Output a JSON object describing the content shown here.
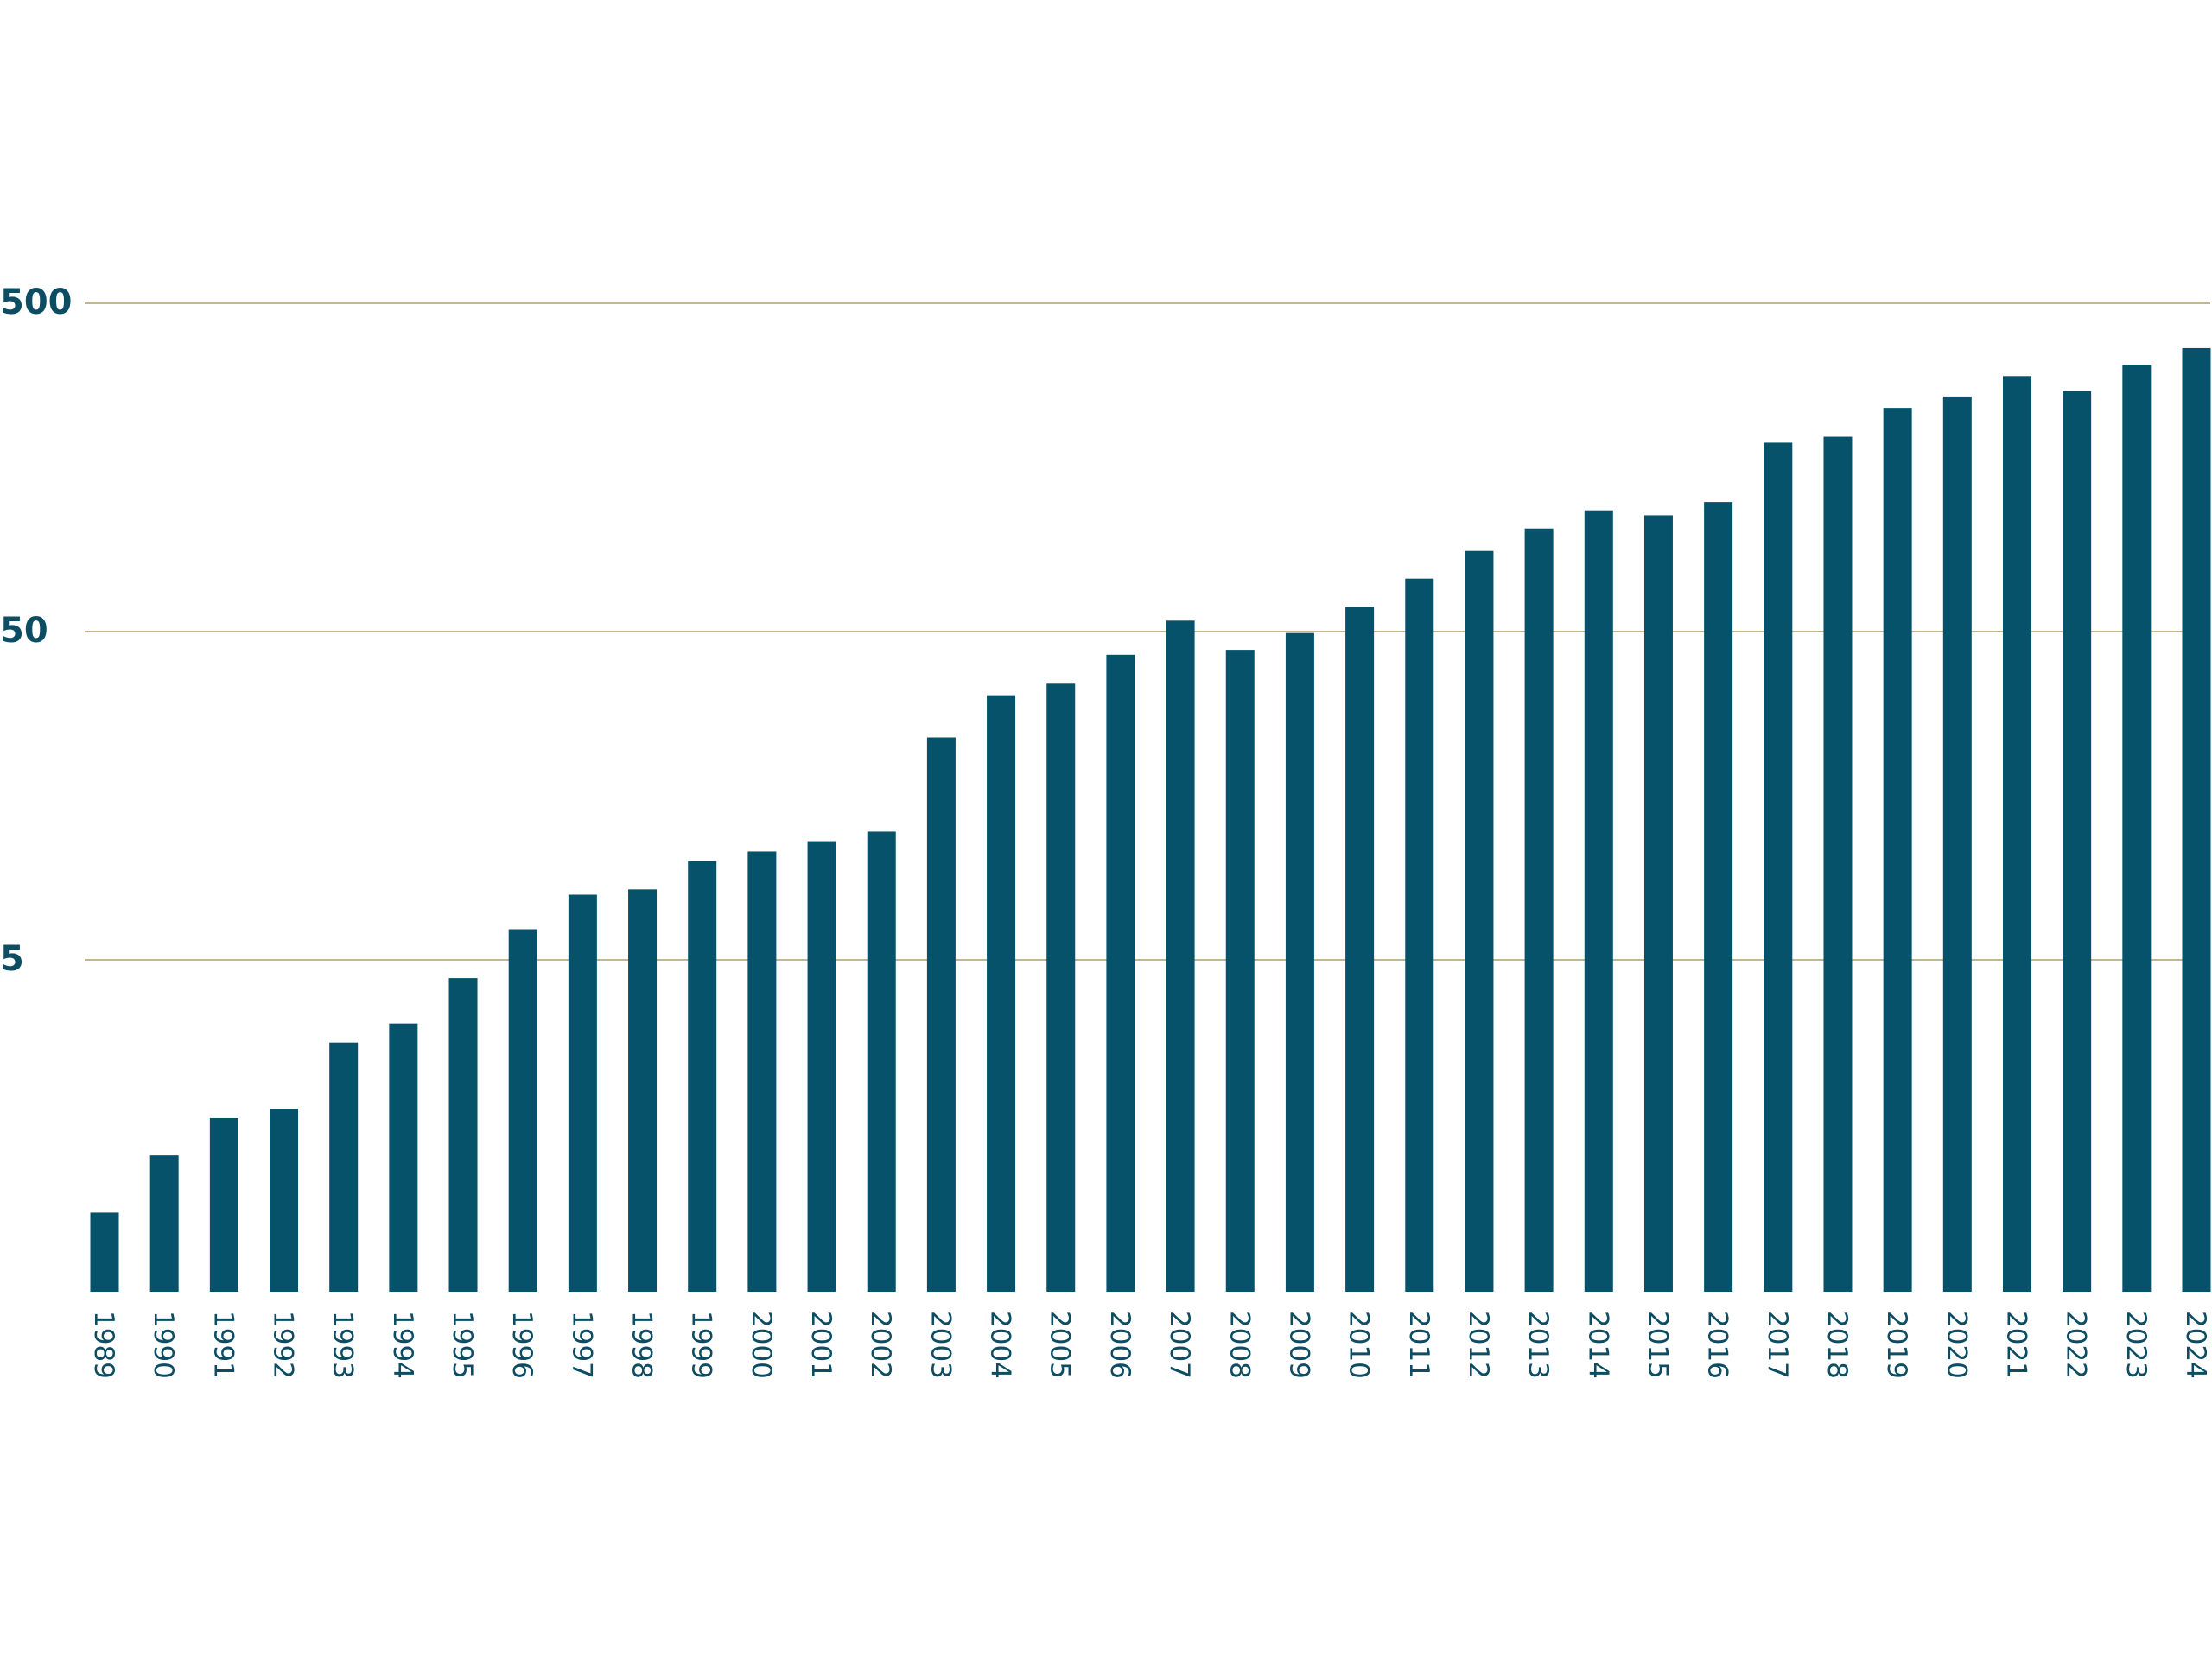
{
  "colors": {
    "bar": "#06526a",
    "grid": "#c2b68a",
    "text": "#0d4d63",
    "background": "#ffffff"
  },
  "chart_data": {
    "type": "bar",
    "title": "",
    "xlabel": "",
    "ylabel": "",
    "yscale": "log",
    "ylim": [
      0.5,
      1100
    ],
    "yticks": [
      5,
      50,
      500
    ],
    "ytick_labels": [
      "5",
      "50",
      "500"
    ],
    "grid": true,
    "legend": "none",
    "categories": [
      "1989",
      "1990",
      "1991",
      "1992",
      "1993",
      "1994",
      "1995",
      "1996",
      "1997",
      "1998",
      "1999",
      "2000",
      "2001",
      "2002",
      "2003",
      "2004",
      "2005",
      "2006",
      "2007",
      "2008",
      "2009",
      "2010",
      "2011",
      "2012",
      "2013",
      "2014",
      "2015",
      "2016",
      "2017",
      "2018",
      "2019",
      "2020",
      "2021",
      "2022",
      "2023",
      "2024"
    ],
    "values": [
      0.85,
      1.27,
      1.65,
      1.76,
      2.8,
      3.2,
      4.4,
      6.2,
      7.9,
      8.2,
      10.0,
      10.7,
      11.5,
      12.3,
      23.8,
      32.0,
      34.7,
      42.5,
      54.0,
      44.0,
      49.5,
      59.5,
      72.5,
      88.0,
      103.0,
      117.0,
      113.0,
      124.0,
      188.0,
      196.0,
      240.0,
      260.0,
      300.0,
      270.0,
      325.0,
      365.0
    ]
  }
}
